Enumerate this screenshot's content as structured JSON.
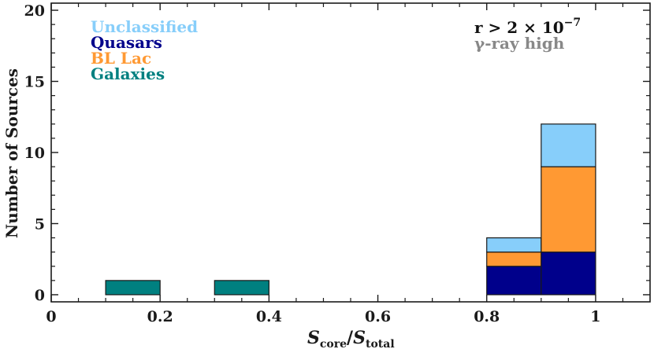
{
  "chart_data": {
    "type": "bar",
    "stacked": true,
    "bins": [
      {
        "x0": 0.1,
        "x1": 0.2
      },
      {
        "x0": 0.3,
        "x1": 0.4
      },
      {
        "x0": 0.8,
        "x1": 0.9
      },
      {
        "x0": 0.9,
        "x1": 1.0
      }
    ],
    "series": [
      {
        "name": "Quasars",
        "color": "#00008b",
        "values": [
          0,
          0,
          2,
          3
        ]
      },
      {
        "name": "BL Lac",
        "color": "#ff9933",
        "values": [
          0,
          0,
          1,
          6
        ]
      },
      {
        "name": "Unclassified",
        "color": "#87cefa",
        "values": [
          0,
          0,
          1,
          3
        ]
      },
      {
        "name": "Galaxies",
        "color": "#008080",
        "values": [
          1,
          1,
          0,
          0
        ]
      }
    ],
    "legend_order": [
      "Unclassified",
      "Quasars",
      "BL Lac",
      "Galaxies"
    ],
    "legend_position": "top-left",
    "xlim": [
      0,
      1.1
    ],
    "ylim": [
      -0.5,
      20.5
    ],
    "xticks": [
      0,
      0.2,
      0.4,
      0.6,
      0.8,
      1
    ],
    "xtick_labels": [
      "0",
      "0.2",
      "0.4",
      "0.6",
      "0.8",
      "1"
    ],
    "yticks": [
      0,
      5,
      10,
      15,
      20
    ],
    "ytick_labels": [
      "0",
      "5",
      "10",
      "15",
      "20"
    ],
    "xlabel": {
      "main1": "S",
      "sub1": "core",
      "slash": "/",
      "main2": "S",
      "sub2": "total"
    },
    "ylabel": "Number of Sources",
    "annotations": {
      "cut": {
        "pre": "r > 2 × 10",
        "exp": "−7",
        "color": "#111111"
      },
      "sample": {
        "text": "γ-ray high",
        "color": "#888888"
      }
    },
    "grid": false
  }
}
